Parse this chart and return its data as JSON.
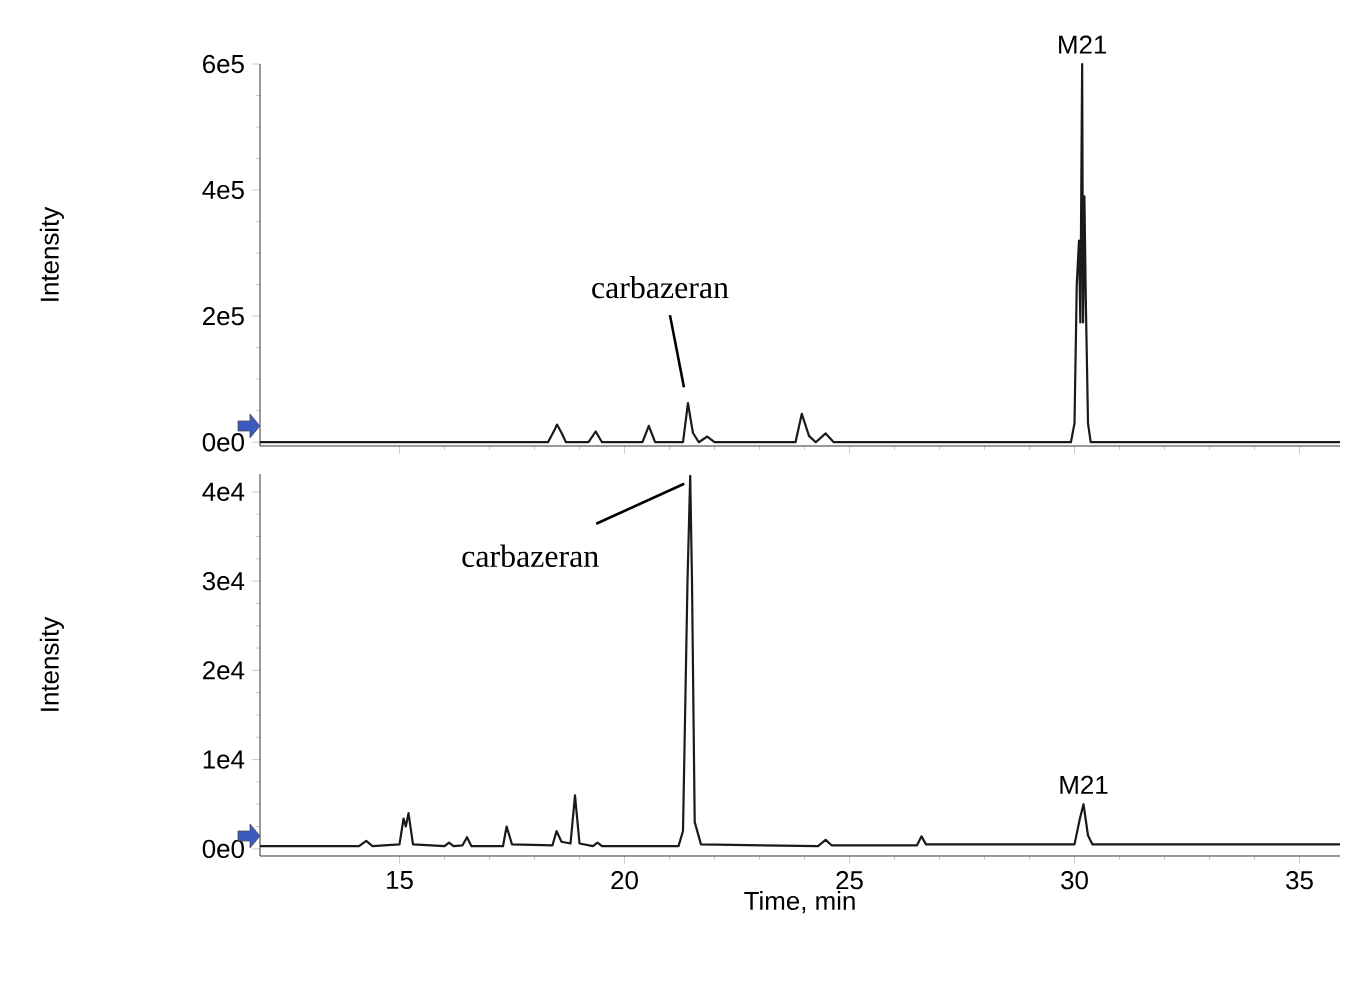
{
  "chart_data": [
    {
      "type": "line",
      "ylabel": "Intensity",
      "xlim": [
        11.9,
        35.9
      ],
      "xticks": [
        15,
        20,
        25,
        30,
        35
      ],
      "ylim": [
        -6000,
        600000
      ],
      "yticks": [
        {
          "value": 0,
          "label": "0e0"
        },
        {
          "value": 200000,
          "label": "2e5"
        },
        {
          "value": 400000,
          "label": "4e5"
        },
        {
          "value": 600000,
          "label": "6e5"
        }
      ],
      "tick_labels": "y",
      "marker": "none",
      "line_style": "solid",
      "annotations": [
        {
          "text": "carbazeran",
          "x": 21.41,
          "y": 62000
        },
        {
          "text": "M21",
          "x": 30.17,
          "y": 600000
        }
      ],
      "series": [
        {
          "color": "#1a1a1a",
          "x": [
            11.9,
            18.3,
            18.45,
            18.5,
            18.6,
            18.7,
            19.2,
            19.36,
            19.5,
            20.4,
            20.54,
            20.68,
            21.3,
            21.41,
            21.52,
            21.65,
            21.84,
            22.0,
            23.8,
            23.94,
            24.1,
            24.25,
            24.47,
            24.65,
            29.92,
            30.0,
            30.05,
            30.1,
            30.13,
            30.17,
            30.19,
            30.22,
            30.25,
            30.3,
            30.36,
            35.9
          ],
          "values": [
            0,
            0,
            20000,
            28000,
            15000,
            0,
            0,
            17000,
            0,
            0,
            26000,
            0,
            0,
            62000,
            15000,
            0,
            9000,
            0,
            0,
            45000,
            10000,
            0,
            14000,
            0,
            0,
            30000,
            250000,
            320000,
            190000,
            600000,
            190000,
            390000,
            230000,
            30000,
            0,
            0
          ]
        }
      ]
    },
    {
      "type": "line",
      "ylabel": "Intensity",
      "xlabel": "Time, min",
      "xlim": [
        11.9,
        35.9
      ],
      "xticks": [
        15,
        20,
        25,
        30,
        35
      ],
      "ylim": [
        -800,
        42000
      ],
      "yticks": [
        {
          "value": 0,
          "label": "0e0"
        },
        {
          "value": 10000,
          "label": "1e4"
        },
        {
          "value": 20000,
          "label": "2e4"
        },
        {
          "value": 30000,
          "label": "3e4"
        },
        {
          "value": 40000,
          "label": "4e4"
        }
      ],
      "marker": "none",
      "line_style": "solid",
      "annotations": [
        {
          "text": "carbazeran",
          "x": 21.46,
          "y": 41800
        },
        {
          "text": "M21",
          "x": 30.2,
          "y": 5000
        }
      ],
      "series": [
        {
          "color": "#1a1a1a",
          "x": [
            11.9,
            14.1,
            14.26,
            14.4,
            15.0,
            15.09,
            15.14,
            15.2,
            15.3,
            16.0,
            16.1,
            16.2,
            16.4,
            16.5,
            16.6,
            17.3,
            17.38,
            17.5,
            18.4,
            18.49,
            18.6,
            18.8,
            18.9,
            19.0,
            19.3,
            19.4,
            19.5,
            21.2,
            21.3,
            21.4,
            21.46,
            21.5,
            21.56,
            21.7,
            24.3,
            24.47,
            24.6,
            26.5,
            26.6,
            26.7,
            30.0,
            30.12,
            30.2,
            30.3,
            30.4,
            35.9
          ],
          "values": [
            300,
            300,
            900,
            300,
            500,
            3400,
            2500,
            4000,
            500,
            300,
            700,
            300,
            400,
            1300,
            300,
            300,
            2500,
            500,
            400,
            2000,
            800,
            600,
            6000,
            600,
            300,
            700,
            300,
            300,
            2000,
            30000,
            41800,
            30000,
            3000,
            500,
            300,
            1000,
            400,
            400,
            1400,
            500,
            500,
            3400,
            5000,
            1500,
            500,
            500
          ]
        }
      ]
    }
  ]
}
